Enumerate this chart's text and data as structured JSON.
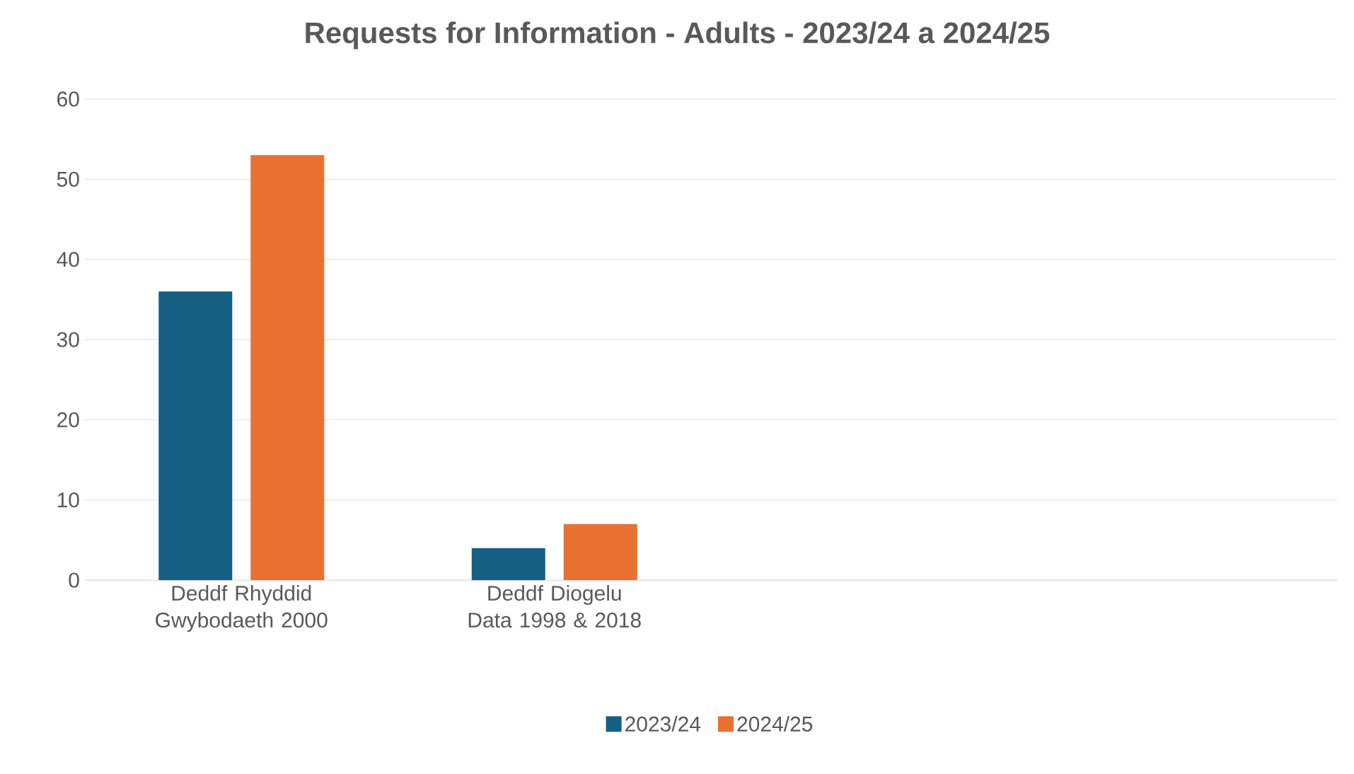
{
  "chart_data": {
    "type": "bar",
    "title": "Requests for Information - Adults - 2023/24 a 2024/25",
    "categories": [
      "Deddf Rhyddid Gwybodaeth 2000",
      "Deddf Diogelu Data 1998 & 2018",
      null,
      null
    ],
    "series": [
      {
        "name": "2023/24",
        "color": "#156082",
        "values": [
          36,
          4,
          null,
          null
        ]
      },
      {
        "name": "2024/25",
        "color": "#e97132",
        "values": [
          53,
          7,
          null,
          null
        ]
      }
    ],
    "ylim": [
      0,
      60
    ],
    "yticks": [
      0,
      10,
      20,
      30,
      40,
      50,
      60
    ],
    "grid": "y",
    "legend": "bottom"
  }
}
